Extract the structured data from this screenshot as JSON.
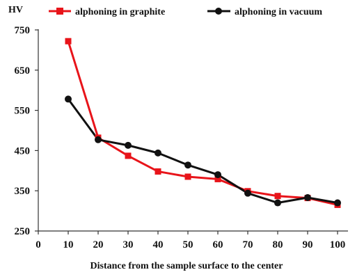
{
  "chart_data": {
    "type": "line",
    "ylabel": "HV",
    "xlabel": "Distance from the sample surface to the center",
    "xlim": [
      0,
      100
    ],
    "ylim": [
      250,
      750
    ],
    "x_ticks": [
      0,
      10,
      20,
      30,
      40,
      50,
      60,
      70,
      80,
      90,
      100
    ],
    "y_ticks": [
      250,
      350,
      450,
      550,
      650,
      750
    ],
    "grid": false,
    "legend_position": "top",
    "x": [
      10,
      20,
      30,
      40,
      50,
      60,
      70,
      80,
      90,
      100
    ],
    "series": [
      {
        "name": "alphoning in graphite",
        "color": "#e8141a",
        "marker": "square",
        "values": [
          722,
          482,
          437,
          398,
          385,
          379,
          349,
          337,
          332,
          315
        ]
      },
      {
        "name": "alphoning in vacuum",
        "color": "#111111",
        "marker": "circle",
        "values": [
          578,
          477,
          463,
          444,
          414,
          390,
          344,
          320,
          333,
          320
        ]
      }
    ]
  }
}
